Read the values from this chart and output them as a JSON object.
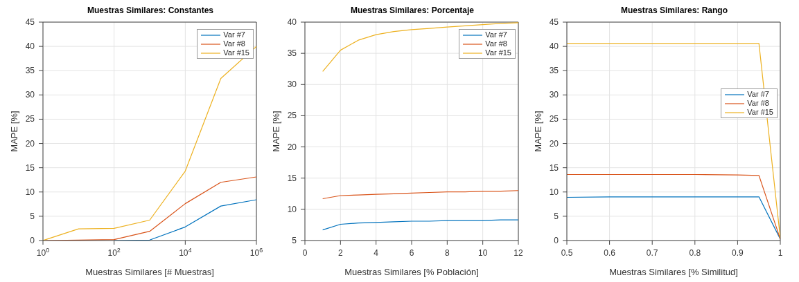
{
  "chart_data": [
    {
      "type": "line",
      "title": "Muestras Similares: Constantes",
      "xlabel": "Muestras Similares [# Muestras]",
      "ylabel": "MAPE [%]",
      "log": "x",
      "x": [
        1,
        10,
        100,
        1000,
        10000,
        100000,
        1000000
      ],
      "series": [
        {
          "name": "Var #7",
          "color": "#0072bd",
          "values": [
            null,
            null,
            0,
            0.1,
            2.8,
            7.1,
            8.4
          ]
        },
        {
          "name": "Var #8",
          "color": "#d95319",
          "values": [
            0,
            0.1,
            0.2,
            1.9,
            7.6,
            12,
            13.1
          ]
        },
        {
          "name": "Var #15",
          "color": "#edb120",
          "values": [
            0,
            2.4,
            2.5,
            4.2,
            14.3,
            33.4,
            40
          ]
        }
      ],
      "xlim": [
        1,
        1000000
      ],
      "xticks": [
        {
          "value": 1,
          "label": "10$^{0}$"
        },
        {
          "value": 100,
          "label": "10$^{2}$"
        },
        {
          "value": 10000,
          "label": "10$^{4}$"
        },
        {
          "value": 1000000,
          "label": "10$^{6}$"
        }
      ],
      "ylim": [
        0,
        45
      ],
      "yticks": [
        0,
        5,
        10,
        15,
        20,
        25,
        30,
        35,
        40,
        45
      ],
      "grid": true,
      "legend": "top right",
      "marker": "none",
      "line_style": "solid"
    },
    {
      "type": "line",
      "title": "Muestras Similares: Porcentaje",
      "xlabel": "Muestras Similares [% Población]",
      "ylabel": "MAPE [%]",
      "x": [
        1,
        2,
        3,
        4,
        5,
        6,
        7,
        8,
        9,
        10,
        11,
        12
      ],
      "series": [
        {
          "name": "Var #7",
          "color": "#0072bd",
          "values": [
            6.7,
            7.6,
            7.8,
            7.9,
            8.0,
            8.1,
            8.1,
            8.2,
            8.2,
            8.2,
            8.3,
            8.3
          ]
        },
        {
          "name": "Var #8",
          "color": "#d95319",
          "values": [
            11.7,
            12.2,
            12.3,
            12.4,
            12.5,
            12.6,
            12.7,
            12.8,
            12.8,
            12.9,
            12.9,
            13.0
          ]
        },
        {
          "name": "Var #15",
          "color": "#edb120",
          "values": [
            32.1,
            35.5,
            37.1,
            38.0,
            38.5,
            38.8,
            39.0,
            39.2,
            39.4,
            39.6,
            39.8,
            39.9
          ]
        }
      ],
      "xlim": [
        0,
        12
      ],
      "xticks": [
        0,
        2,
        4,
        6,
        8,
        10,
        12
      ],
      "ylim": [
        5,
        40
      ],
      "yticks": [
        5,
        10,
        15,
        20,
        25,
        30,
        35,
        40
      ],
      "grid": true,
      "legend": "top right",
      "marker": "none",
      "line_style": "solid"
    },
    {
      "type": "line",
      "title": "Muestras Similares: Rango",
      "xlabel": "Muestras Similares [% Similitud]",
      "ylabel": "MAPE [%]",
      "x": [
        0.5,
        0.6,
        0.7,
        0.8,
        0.9,
        0.95,
        1
      ],
      "series": [
        {
          "name": "Var #7",
          "color": "#0072bd",
          "values": [
            8.9,
            9.0,
            9.0,
            9.0,
            9.0,
            9.0,
            0.3
          ]
        },
        {
          "name": "Var #8",
          "color": "#d95319",
          "values": [
            13.6,
            13.6,
            13.6,
            13.6,
            13.5,
            13.4,
            0.3
          ]
        },
        {
          "name": "Var #15",
          "color": "#edb120",
          "values": [
            40.6,
            40.6,
            40.6,
            40.6,
            40.6,
            40.6,
            0.5
          ]
        }
      ],
      "xlim": [
        0.5,
        1
      ],
      "xticks": [
        0.5,
        0.6,
        0.7,
        0.8,
        0.9,
        1
      ],
      "ylim": [
        0,
        45
      ],
      "yticks": [
        0,
        5,
        10,
        15,
        20,
        25,
        30,
        35,
        40,
        45
      ],
      "grid": true,
      "legend": "right",
      "marker": "none",
      "line_style": "solid"
    }
  ]
}
